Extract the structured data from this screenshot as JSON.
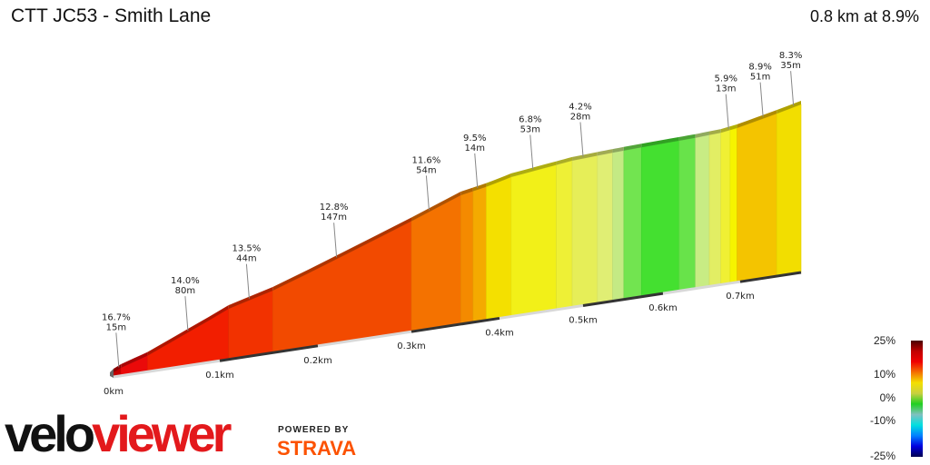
{
  "header": {
    "title": "CTT JC53 - Smith Lane",
    "summary": "0.8 km at 8.9%"
  },
  "branding": {
    "logo_part1": "velo",
    "logo_part2": "viewer",
    "powered_by": "POWERED BY",
    "strava": "STRAVA"
  },
  "chart_data": {
    "type": "area",
    "title": "CTT JC53 - Smith Lane",
    "xlabel": "",
    "ylabel": "",
    "x_unit": "km",
    "x_ticks": [
      "0km",
      "0.1km",
      "0.2km",
      "0.3km",
      "0.4km",
      "0.5km",
      "0.6km",
      "0.7km"
    ],
    "x_tick_values": [
      0,
      0.1,
      0.2,
      0.3,
      0.4,
      0.5,
      0.6,
      0.7
    ],
    "distance_km": 0.78,
    "profile": [
      [
        0,
        0
      ],
      [
        0.007,
        1.5
      ],
      [
        0.032,
        5
      ],
      [
        0.109,
        20
      ],
      [
        0.154,
        25
      ],
      [
        0.3,
        46
      ],
      [
        0.356,
        54
      ],
      [
        0.385,
        56
      ],
      [
        0.414,
        58.6
      ],
      [
        0.487,
        61.7
      ],
      [
        0.537,
        62.5
      ],
      [
        0.573,
        62.9
      ],
      [
        0.642,
        63.5
      ],
      [
        0.675,
        64
      ],
      [
        0.696,
        65
      ],
      [
        0.748,
        68.6
      ],
      [
        0.78,
        71
      ]
    ],
    "segments": [
      {
        "from": 0,
        "to": 0.007,
        "color": "#c40000"
      },
      {
        "from": 0.007,
        "to": 0.032,
        "color": "#ea0a0a"
      },
      {
        "from": 0.032,
        "to": 0.109,
        "color": "#f21e00"
      },
      {
        "from": 0.109,
        "to": 0.154,
        "color": "#f23200"
      },
      {
        "from": 0.154,
        "to": 0.3,
        "color": "#f24a00"
      },
      {
        "from": 0.3,
        "to": 0.356,
        "color": "#f47200"
      },
      {
        "from": 0.356,
        "to": 0.37,
        "color": "#f48a00"
      },
      {
        "from": 0.37,
        "to": 0.385,
        "color": "#f4aa00"
      },
      {
        "from": 0.385,
        "to": 0.414,
        "color": "#f4e000"
      },
      {
        "from": 0.414,
        "to": 0.468,
        "color": "#f2f018"
      },
      {
        "from": 0.468,
        "to": 0.487,
        "color": "#eef036"
      },
      {
        "from": 0.487,
        "to": 0.518,
        "color": "#e6ee58"
      },
      {
        "from": 0.518,
        "to": 0.537,
        "color": "#e0ee74"
      },
      {
        "from": 0.537,
        "to": 0.551,
        "color": "#c4ea84"
      },
      {
        "from": 0.551,
        "to": 0.573,
        "color": "#72e450"
      },
      {
        "from": 0.573,
        "to": 0.621,
        "color": "#44e030"
      },
      {
        "from": 0.621,
        "to": 0.642,
        "color": "#68e34a"
      },
      {
        "from": 0.642,
        "to": 0.66,
        "color": "#c8ec84"
      },
      {
        "from": 0.66,
        "to": 0.675,
        "color": "#e2ee64"
      },
      {
        "from": 0.675,
        "to": 0.687,
        "color": "#f0f034"
      },
      {
        "from": 0.687,
        "to": 0.696,
        "color": "#f6f400"
      },
      {
        "from": 0.696,
        "to": 0.748,
        "color": "#f4c400"
      },
      {
        "from": 0.748,
        "to": 0.78,
        "color": "#f2de00"
      }
    ],
    "annotations": [
      {
        "km": 0.005,
        "gradient": "16.7%",
        "length": "15m"
      },
      {
        "km": 0.07,
        "gradient": "14.0%",
        "length": "80m"
      },
      {
        "km": 0.13,
        "gradient": "13.5%",
        "length": "44m"
      },
      {
        "km": 0.22,
        "gradient": "12.8%",
        "length": "147m"
      },
      {
        "km": 0.32,
        "gradient": "11.6%",
        "length": "54m"
      },
      {
        "km": 0.375,
        "gradient": "9.5%",
        "length": "14m"
      },
      {
        "km": 0.44,
        "gradient": "6.8%",
        "length": "53m"
      },
      {
        "km": 0.5,
        "gradient": "4.2%",
        "length": "28m"
      },
      {
        "km": 0.685,
        "gradient": "5.9%",
        "length": "13m"
      },
      {
        "km": 0.73,
        "gradient": "8.9%",
        "length": "51m"
      },
      {
        "km": 0.77,
        "gradient": "8.3%",
        "length": "35m"
      }
    ],
    "legend": {
      "labels": [
        "25%",
        "10%",
        "0%",
        "-10%",
        "-25%"
      ],
      "colors": [
        "#4a0000",
        "#c00000",
        "#f00000",
        "#f47000",
        "#f4e000",
        "#c8d040",
        "#20d020",
        "#80c0c0",
        "#00e0e0",
        "#0080ff",
        "#0000e0",
        "#000050"
      ]
    },
    "grid": false
  }
}
